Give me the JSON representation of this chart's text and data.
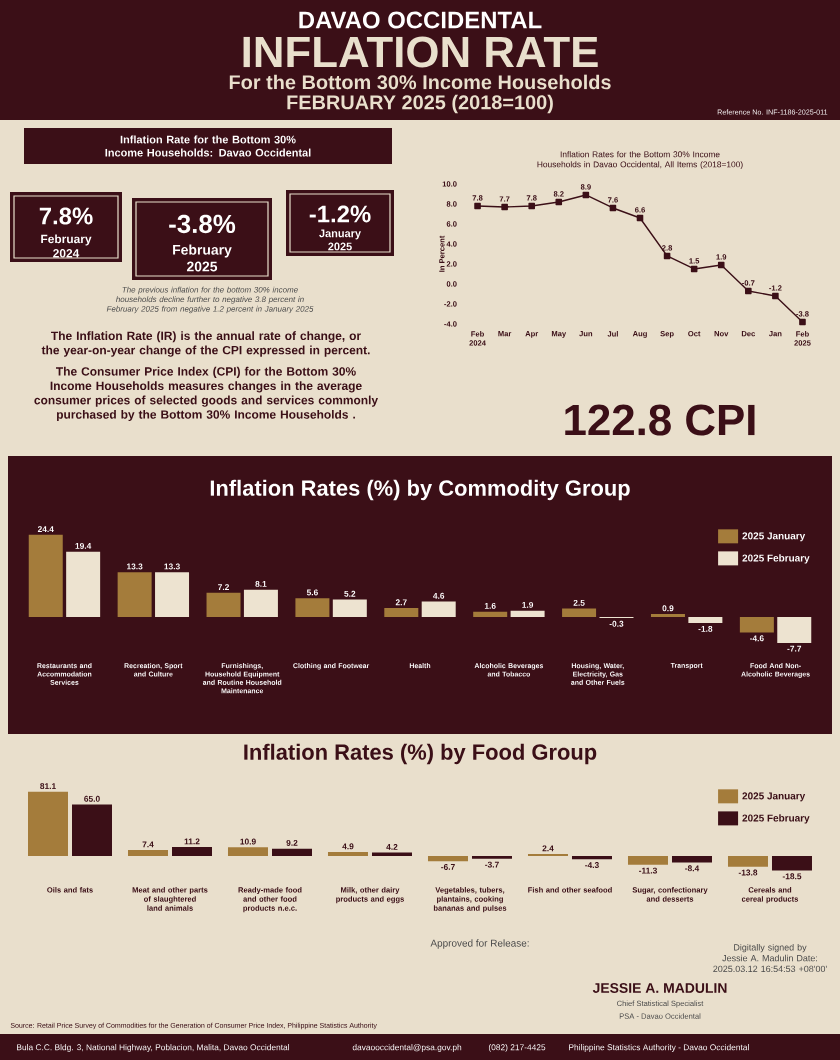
{
  "chart_data": [
    {
      "type": "other",
      "title": "INFLATION RATE",
      "subtitle": "For the Bottom 30% Income Households",
      "annotations": [
        "DAVAO OCCIDENTAL",
        "FEBRUARY 2025 (2018=100)",
        "Reference No. INF-1186-2025-011"
      ]
    },
    {
      "type": "other",
      "title": "Inflation Rate for the Bottom 30% Income Households: Davao Occidental",
      "annotations": [
        "7.8%",
        "February 2024",
        "-3.8%",
        "February 2025",
        "-1.2%",
        "January 2025",
        "The previous inflation for the bottom 30% income households decline further to negative 3.8 percent in February 2025 from negative 1.2 percent in January 2025",
        "The Inflation Rate (IR) is the annual rate of change, or the year-on-year change of the CPI expressed in percent.",
        "The Consumer Price Index (CPI) for the Bottom 30% Income Households measures changes in the average consumer prices of selected goods and services commonly purchased by the Bottom 30% Income Households .",
        "122.8 CPI"
      ]
    },
    {
      "type": "line",
      "title": "Inflation Rates for the Bottom 30% Income Households in Davao Occidental, All Items (2018=100)",
      "ylabel": "In Percent",
      "categories": [
        "Feb 2024",
        "Mar",
        "Apr",
        "May",
        "Jun",
        "Jul",
        "Aug",
        "Sep",
        "Oct",
        "Nov",
        "Dec",
        "Jan",
        "Feb 2025"
      ],
      "values": [
        7.8,
        7.7,
        7.8,
        8.2,
        8.9,
        7.6,
        6.6,
        2.8,
        1.5,
        1.9,
        -0.7,
        -1.2,
        -3.8
      ],
      "color": "#3b0f17",
      "marker": "square",
      "data_labels": true,
      "ylim": [
        -4,
        10
      ],
      "yticks": [
        {
          "value": -4,
          "label": "-4.0"
        },
        {
          "value": -2,
          "label": "-2.0"
        },
        {
          "value": 0,
          "label": "0.0"
        },
        {
          "value": 2,
          "label": "2.0"
        },
        {
          "value": 4,
          "label": "4.0"
        },
        {
          "value": 6,
          "label": "6.0"
        },
        {
          "value": 8,
          "label": "8.0"
        },
        {
          "value": 10,
          "label": "10.0"
        }
      ]
    },
    {
      "type": "bar",
      "title": "Inflation Rates (%) by Commodity Group",
      "categories": [
        "Restaurants and Accommodation Services",
        "Recreation, Sport and Culture",
        "Furnishings, Household Equipment and Routine Household Maintenance",
        "Clothing and Footwear",
        "Health",
        "Alcoholic Beverages and Tobacco",
        "Housing, Water, Electricity, Gas and Other Fuels",
        "Transport",
        "Food And Non-Alcoholic Beverages"
      ],
      "series": [
        {
          "name": "2025 January",
          "color": "#a47c3b",
          "values": [
            24.4,
            13.3,
            7.2,
            5.6,
            2.7,
            1.6,
            2.5,
            0.9,
            -4.6
          ]
        },
        {
          "name": "2025 February",
          "color": "#ede3d0",
          "values": [
            19.4,
            13.3,
            8.1,
            5.2,
            4.6,
            1.9,
            -0.3,
            -1.8,
            -7.7
          ]
        }
      ],
      "data_labels": true,
      "legend": "top right"
    },
    {
      "type": "bar",
      "title": "Inflation Rates (%) by Food Group",
      "categories": [
        "Oils and fats",
        "Meat and other parts of slaughtered land animals",
        "Ready-made food and other food products n.e.c.",
        "Milk, other dairy products and eggs",
        "Vegetables, tubers, plantains, cooking bananas and pulses",
        "Fish and other seafood",
        "Sugar, confectionary and desserts",
        "Cereals and cereal products"
      ],
      "series": [
        {
          "name": "2025 January",
          "color": "#a47c3b",
          "values": [
            81.1,
            7.4,
            10.9,
            4.9,
            -6.7,
            2.4,
            -11.3,
            -13.8
          ],
          "value_labels": [
            "81.1",
            "7.4",
            "10.9",
            "4.9",
            "-6.7",
            "2.4",
            "-11.3",
            "-13.8"
          ]
        },
        {
          "name": "2025 February",
          "color": "#3b0f17",
          "values": [
            65.0,
            11.2,
            9.2,
            4.2,
            -3.7,
            -4.3,
            -8.4,
            -18.5
          ],
          "value_labels": [
            "65.0",
            "11.2",
            "9.2",
            "4.2",
            "-3.7",
            "-4.3",
            "-8.4",
            "-18.5"
          ]
        }
      ],
      "legend": "top right"
    },
    {
      "type": "other",
      "annotations": [
        "Approved for Release:",
        "Digitally signed by Jessie A. Madulin Date: 2025.03.12 16:54:53 +08'00'",
        "JESSIE A. MADULIN",
        "Chief Statistical Specialist",
        "PSA - Davao Occidental",
        "Source: Retail Price Survey of Commodities for the Generation of Consumer Price Index, Philippine Statistics Authority",
        "Bula C.C. Bldg. 3, National Highway, Poblacion, Malita, Davao Occidental",
        "davaooccidental@psa.gov.ph",
        "(082) 217-4425",
        "Philippine Statistics Authority - Davao Occidental"
      ]
    }
  ]
}
